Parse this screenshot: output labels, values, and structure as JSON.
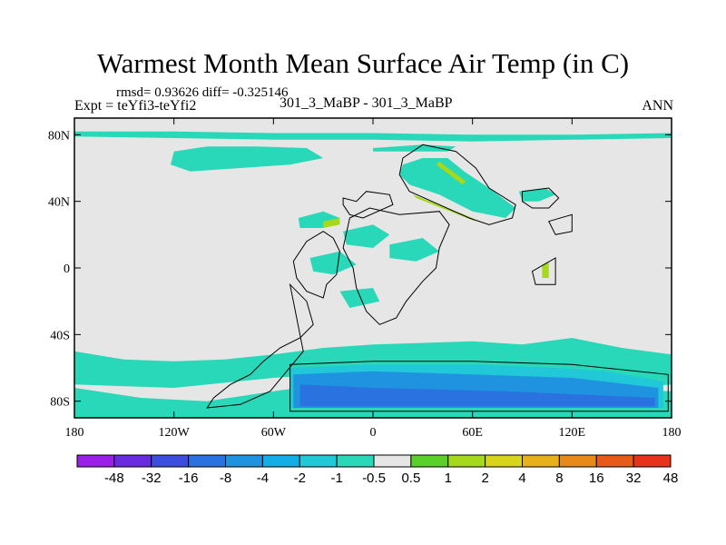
{
  "chart_data": {
    "type": "heatmap",
    "title": "Warmest Month Mean Surface Air Temp (in C)",
    "stats": "rmsd= 0.93626 diff= -0.325146",
    "experiment": "Expt = teYfi3-teYfi2",
    "cases": "301_3_MaBP - 301_3_MaBP",
    "period": "ANN",
    "xlim": [
      -180,
      180
    ],
    "ylim": [
      -90,
      90
    ],
    "x_ticks": [
      {
        "value": -180,
        "label": "180"
      },
      {
        "value": -120,
        "label": "120W"
      },
      {
        "value": -60,
        "label": "60W"
      },
      {
        "value": 0,
        "label": "0"
      },
      {
        "value": 60,
        "label": "60E"
      },
      {
        "value": 120,
        "label": "120E"
      },
      {
        "value": 180,
        "label": "180"
      }
    ],
    "y_ticks": [
      {
        "value": 80,
        "label": "80N"
      },
      {
        "value": 40,
        "label": "40N"
      },
      {
        "value": 0,
        "label": "0"
      },
      {
        "value": -40,
        "label": "40S"
      },
      {
        "value": -80,
        "label": "80S"
      }
    ],
    "colorbar": {
      "levels": [
        "-48",
        "-32",
        "-16",
        "-8",
        "-4",
        "-2",
        "-1",
        "-0.5",
        "0.5",
        "1",
        "2",
        "4",
        "8",
        "16",
        "32",
        "48"
      ],
      "colors": [
        "#9b1fe8",
        "#6a2be0",
        "#3c4ee0",
        "#2a72e0",
        "#1f93e0",
        "#14aee6",
        "#20c8d8",
        "#28d8b8",
        "#e6e6e6",
        "#5ad02a",
        "#a6d81c",
        "#d8d41c",
        "#e8b01a",
        "#e88a1a",
        "#e85a1a",
        "#e8321a"
      ]
    },
    "regions": [
      {
        "name": "arctic-band",
        "value": -0.7,
        "points": [
          [
            -180,
            82
          ],
          [
            -120,
            82
          ],
          [
            -60,
            81
          ],
          [
            0,
            81
          ],
          [
            60,
            80
          ],
          [
            120,
            80
          ],
          [
            180,
            81
          ],
          [
            180,
            78
          ],
          [
            120,
            77
          ],
          [
            60,
            76
          ],
          [
            0,
            77
          ],
          [
            -60,
            77
          ],
          [
            -120,
            78
          ],
          [
            -180,
            79
          ]
        ]
      },
      {
        "name": "north-america-high-lat",
        "value": -0.7,
        "points": [
          [
            -120,
            70
          ],
          [
            -100,
            73
          ],
          [
            -70,
            73
          ],
          [
            -40,
            72
          ],
          [
            -30,
            66
          ],
          [
            -50,
            62
          ],
          [
            -80,
            60
          ],
          [
            -110,
            58
          ],
          [
            -122,
            62
          ]
        ]
      },
      {
        "name": "arctic-strip-east",
        "value": -0.7,
        "points": [
          [
            0,
            72
          ],
          [
            30,
            74
          ],
          [
            50,
            73
          ],
          [
            45,
            70
          ],
          [
            20,
            70
          ],
          [
            0,
            70
          ]
        ]
      },
      {
        "name": "asia-zone",
        "value": -0.7,
        "points": [
          [
            18,
            62
          ],
          [
            30,
            66
          ],
          [
            45,
            66
          ],
          [
            55,
            58
          ],
          [
            70,
            48
          ],
          [
            86,
            36
          ],
          [
            80,
            30
          ],
          [
            60,
            34
          ],
          [
            40,
            44
          ],
          [
            22,
            50
          ],
          [
            16,
            56
          ]
        ]
      },
      {
        "name": "asia-green-stripe",
        "value": 1.2,
        "points": [
          [
            24,
            44
          ],
          [
            60,
            30
          ],
          [
            62,
            28
          ],
          [
            26,
            42
          ]
        ]
      },
      {
        "name": "asia-green-stripe-2",
        "value": 1.2,
        "points": [
          [
            40,
            64
          ],
          [
            56,
            52
          ],
          [
            54,
            50
          ],
          [
            38,
            62
          ]
        ]
      },
      {
        "name": "east-asia-patch",
        "value": -0.7,
        "points": [
          [
            88,
            46
          ],
          [
            104,
            48
          ],
          [
            110,
            44
          ],
          [
            100,
            40
          ],
          [
            90,
            40
          ]
        ]
      },
      {
        "name": "africa-blob-1",
        "value": -0.7,
        "points": [
          [
            -45,
            30
          ],
          [
            -30,
            34
          ],
          [
            -20,
            30
          ],
          [
            -30,
            24
          ],
          [
            -44,
            24
          ]
        ]
      },
      {
        "name": "africa-blob-2",
        "value": -0.7,
        "points": [
          [
            -18,
            22
          ],
          [
            0,
            26
          ],
          [
            10,
            20
          ],
          [
            0,
            12
          ],
          [
            -16,
            14
          ]
        ]
      },
      {
        "name": "africa-blob-3",
        "value": -0.7,
        "points": [
          [
            10,
            14
          ],
          [
            30,
            18
          ],
          [
            40,
            10
          ],
          [
            26,
            4
          ],
          [
            10,
            6
          ]
        ]
      },
      {
        "name": "africa-blob-4",
        "value": -0.7,
        "points": [
          [
            -38,
            6
          ],
          [
            -20,
            10
          ],
          [
            -10,
            2
          ],
          [
            -24,
            -4
          ],
          [
            -36,
            -2
          ]
        ]
      },
      {
        "name": "africa-blob-5",
        "value": -0.7,
        "points": [
          [
            -20,
            -14
          ],
          [
            0,
            -12
          ],
          [
            4,
            -20
          ],
          [
            -14,
            -24
          ]
        ]
      },
      {
        "name": "africa-green",
        "value": 1.2,
        "points": [
          [
            -30,
            28
          ],
          [
            -20,
            30
          ],
          [
            -20,
            26
          ],
          [
            -30,
            24
          ]
        ]
      },
      {
        "name": "se-asia-patch",
        "value": 1.2,
        "points": [
          [
            102,
            2
          ],
          [
            106,
            4
          ],
          [
            106,
            -6
          ],
          [
            102,
            -6
          ]
        ]
      },
      {
        "name": "south-ocean-band",
        "value": -0.7,
        "points": [
          [
            -180,
            -50
          ],
          [
            -150,
            -55
          ],
          [
            -120,
            -56
          ],
          [
            -90,
            -55
          ],
          [
            -60,
            -52
          ],
          [
            -30,
            -48
          ],
          [
            0,
            -46
          ],
          [
            30,
            -45
          ],
          [
            60,
            -44
          ],
          [
            90,
            -46
          ],
          [
            120,
            -42
          ],
          [
            150,
            -48
          ],
          [
            180,
            -52
          ],
          [
            180,
            -70
          ],
          [
            150,
            -72
          ],
          [
            120,
            -70
          ],
          [
            60,
            -64
          ],
          [
            0,
            -62
          ],
          [
            -60,
            -66
          ],
          [
            -120,
            -72
          ],
          [
            -180,
            -70
          ]
        ]
      },
      {
        "name": "south-ocean-lower",
        "value": -0.7,
        "points": [
          [
            -180,
            -72
          ],
          [
            -140,
            -78
          ],
          [
            -100,
            -80
          ],
          [
            -60,
            -74
          ],
          [
            -30,
            -70
          ],
          [
            0,
            -70
          ],
          [
            60,
            -72
          ],
          [
            120,
            -72
          ],
          [
            180,
            -74
          ],
          [
            180,
            -90
          ],
          [
            -180,
            -90
          ]
        ]
      },
      {
        "name": "antarctic-mid-blue",
        "value": -1.5,
        "points": [
          [
            -50,
            -60
          ],
          [
            0,
            -58
          ],
          [
            60,
            -58
          ],
          [
            110,
            -60
          ],
          [
            140,
            -62
          ],
          [
            175,
            -68
          ],
          [
            175,
            -84
          ],
          [
            -50,
            -84
          ]
        ]
      },
      {
        "name": "antarctic-dark-blue",
        "value": -6,
        "points": [
          [
            -48,
            -64
          ],
          [
            0,
            -62
          ],
          [
            60,
            -64
          ],
          [
            120,
            -66
          ],
          [
            172,
            -72
          ],
          [
            172,
            -84
          ],
          [
            -48,
            -84
          ]
        ]
      },
      {
        "name": "antarctic-core",
        "value": -12,
        "points": [
          [
            -44,
            -70
          ],
          [
            0,
            -72
          ],
          [
            80,
            -74
          ],
          [
            170,
            -78
          ],
          [
            170,
            -83
          ],
          [
            -44,
            -83
          ]
        ]
      }
    ],
    "land_outlines": [
      [
        [
          -18,
          42
        ],
        [
          -10,
          40
        ],
        [
          -4,
          46
        ],
        [
          10,
          44
        ],
        [
          12,
          38
        ],
        [
          -6,
          30
        ],
        [
          -14,
          32
        ],
        [
          -18,
          38
        ]
      ],
      [
        [
          -30,
          22
        ],
        [
          -40,
          16
        ],
        [
          -48,
          4
        ],
        [
          -46,
          -6
        ],
        [
          -40,
          -14
        ],
        [
          -30,
          -18
        ],
        [
          -28,
          -10
        ],
        [
          -22,
          -4
        ],
        [
          -20,
          10
        ],
        [
          -24,
          18
        ]
      ],
      [
        [
          -50,
          -10
        ],
        [
          -40,
          -20
        ],
        [
          -36,
          -34
        ],
        [
          -44,
          -42
        ],
        [
          -56,
          -48
        ],
        [
          -66,
          -56
        ],
        [
          -74,
          -64
        ],
        [
          -86,
          -70
        ],
        [
          -96,
          -78
        ],
        [
          -100,
          -84
        ],
        [
          -80,
          -82
        ],
        [
          -62,
          -74
        ],
        [
          -52,
          -62
        ],
        [
          -42,
          -50
        ]
      ],
      [
        [
          18,
          66
        ],
        [
          30,
          74
        ],
        [
          50,
          70
        ],
        [
          62,
          60
        ],
        [
          70,
          48
        ],
        [
          86,
          38
        ],
        [
          84,
          30
        ],
        [
          70,
          26
        ],
        [
          58,
          30
        ],
        [
          40,
          38
        ],
        [
          22,
          46
        ],
        [
          16,
          56
        ]
      ],
      [
        [
          -14,
          30
        ],
        [
          -2,
          36
        ],
        [
          16,
          32
        ],
        [
          40,
          34
        ],
        [
          46,
          26
        ],
        [
          40,
          12
        ],
        [
          38,
          0
        ],
        [
          30,
          -8
        ],
        [
          20,
          -20
        ],
        [
          14,
          -30
        ],
        [
          4,
          -34
        ],
        [
          -4,
          -26
        ],
        [
          -10,
          -12
        ],
        [
          -12,
          0
        ],
        [
          -18,
          12
        ]
      ],
      [
        [
          -50,
          -58
        ],
        [
          0,
          -56
        ],
        [
          60,
          -56
        ],
        [
          120,
          -58
        ],
        [
          178,
          -64
        ],
        [
          178,
          -86
        ],
        [
          -50,
          -86
        ]
      ],
      [
        [
          90,
          46
        ],
        [
          106,
          48
        ],
        [
          112,
          42
        ],
        [
          106,
          36
        ],
        [
          96,
          36
        ],
        [
          90,
          40
        ]
      ],
      [
        [
          96,
          -2
        ],
        [
          110,
          6
        ],
        [
          110,
          -10
        ],
        [
          98,
          -10
        ]
      ],
      [
        [
          106,
          28
        ],
        [
          120,
          32
        ],
        [
          120,
          22
        ],
        [
          110,
          20
        ]
      ]
    ]
  }
}
